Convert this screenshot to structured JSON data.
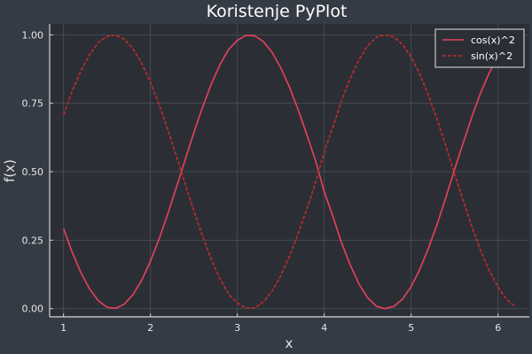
{
  "chart_data": {
    "type": "line",
    "title": "Koristenje PyPlot",
    "xlabel": "x",
    "ylabel": "f(x)",
    "xlim": [
      0.84,
      6.36
    ],
    "ylim": [
      -0.03,
      1.04
    ],
    "x_ticks": [
      1,
      2,
      3,
      4,
      5,
      6
    ],
    "y_ticks": [
      0.0,
      0.25,
      0.5,
      0.75,
      1.0
    ],
    "x_tick_labels": [
      "1",
      "2",
      "3",
      "4",
      "5",
      "6"
    ],
    "y_tick_labels": [
      "0.00",
      "0.25",
      "0.50",
      "0.75",
      "1.00"
    ],
    "grid": true,
    "legend_position": "top-right",
    "x": [
      1.0,
      1.1,
      1.2,
      1.3,
      1.4,
      1.5,
      1.6,
      1.7,
      1.8,
      1.9,
      2.0,
      2.1,
      2.2,
      2.3,
      2.4,
      2.5,
      2.6,
      2.7,
      2.8,
      2.9,
      3.0,
      3.1,
      3.2,
      3.3,
      3.4,
      3.5,
      3.6,
      3.7,
      3.8,
      3.9,
      4.0,
      4.1,
      4.2,
      4.3,
      4.4,
      4.5,
      4.6,
      4.7,
      4.8,
      4.9,
      5.0,
      5.1,
      5.2,
      5.3,
      5.4,
      5.5,
      5.6,
      5.7,
      5.8,
      5.9,
      6.0,
      6.1,
      6.2
    ],
    "series": [
      {
        "name": "cos(x)^2",
        "color": "#e8405e",
        "dash": "solid",
        "values": [
          0.2919,
          0.2057,
          0.1313,
          0.0716,
          0.0289,
          0.005,
          0.0009,
          0.0166,
          0.0516,
          0.1039,
          0.1732,
          0.2549,
          0.3465,
          0.4444,
          0.5446,
          0.6431,
          0.7362,
          0.82,
          0.8913,
          0.947,
          0.9801,
          0.9983,
          0.9967,
          0.9755,
          0.9358,
          0.8795,
          0.8086,
          0.726,
          0.6353,
          0.5403,
          0.4272,
          0.3363,
          0.2395,
          0.159,
          0.0897,
          0.0393,
          0.0086,
          2e-05,
          0.0077,
          0.0346,
          0.0805,
          0.1438,
          0.2215,
          0.3096,
          0.4064,
          0.5087,
          0.6062,
          0.7018,
          0.7886,
          0.8618,
          0.9219,
          0.9675,
          0.9932
        ]
      },
      {
        "name": "sin(x)^2",
        "color": "#c42a2d",
        "dash": "dashed",
        "values": [
          0.7081,
          0.7943,
          0.8687,
          0.9284,
          0.9711,
          0.995,
          0.9991,
          0.9834,
          0.9484,
          0.8961,
          0.8268,
          0.7451,
          0.6535,
          0.5556,
          0.4554,
          0.3569,
          0.2638,
          0.18,
          0.1087,
          0.053,
          0.0199,
          0.0017,
          0.0033,
          0.0245,
          0.0642,
          0.1205,
          0.1914,
          0.274,
          0.3647,
          0.4597,
          0.5728,
          0.6637,
          0.7605,
          0.841,
          0.9103,
          0.9607,
          0.9914,
          0.99998,
          0.9923,
          0.9654,
          0.9195,
          0.8562,
          0.7785,
          0.6904,
          0.5936,
          0.4913,
          0.3938,
          0.2982,
          0.2114,
          0.1382,
          0.0781,
          0.0325,
          0.0068
        ]
      }
    ]
  }
}
